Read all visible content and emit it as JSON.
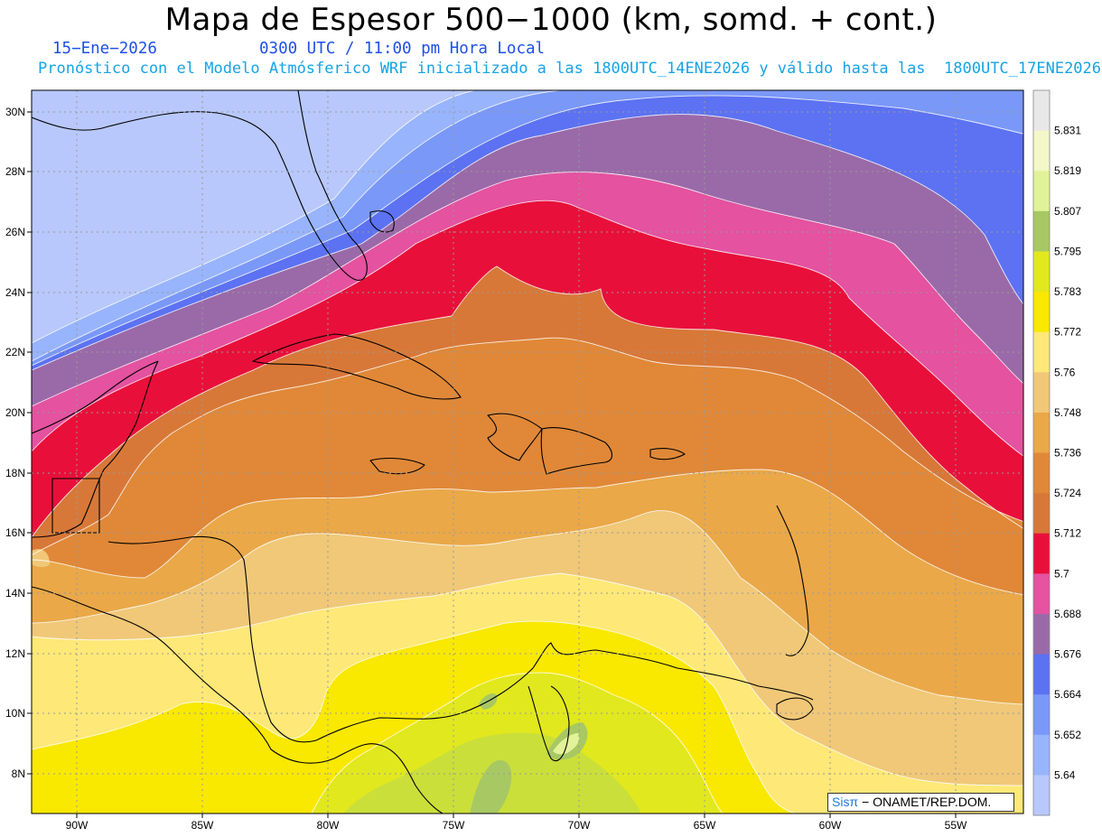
{
  "header": {
    "title": "Mapa de Espesor 500−1000 (km, somd. + cont.)",
    "date": "15−Ene−2026",
    "time": "0300 UTC / 11:00 pm Hora Local",
    "model_info": "Pronóstico con el Modelo Atmósferico WRF inicializado a las 1800UTC_14ENE2026 y válido hasta las  1800UTC_17ENE2026"
  },
  "map": {
    "lat_ticks": [
      "30N",
      "28N",
      "26N",
      "24N",
      "22N",
      "20N",
      "18N",
      "16N",
      "14N",
      "12N",
      "10N",
      "8N"
    ],
    "lon_ticks": [
      "90W",
      "85W",
      "80W",
      "75W",
      "70W",
      "65W",
      "60W",
      "55W"
    ]
  },
  "colorbar": {
    "labels": [
      "5.831",
      "5.819",
      "5.807",
      "5.795",
      "5.783",
      "5.772",
      "5.76",
      "5.748",
      "5.736",
      "5.724",
      "5.712",
      "5.7",
      "5.688",
      "5.676",
      "5.664",
      "5.652",
      "5.64"
    ],
    "colors": [
      "#e8e8e8",
      "#f2f8c8",
      "#e2f298",
      "#a8c864",
      "#e2e81e",
      "#f9e800",
      "#fde878",
      "#f0c878",
      "#eaa848",
      "#e08838",
      "#d87838",
      "#e8103a",
      "#e452a0",
      "#9a6aa8",
      "#5c72f2",
      "#7a98f8",
      "#98b4fc",
      "#b8c8fc"
    ]
  },
  "credit": {
    "brand": "Sisπ",
    "org": "− ONAMET/REP.DOM."
  }
}
